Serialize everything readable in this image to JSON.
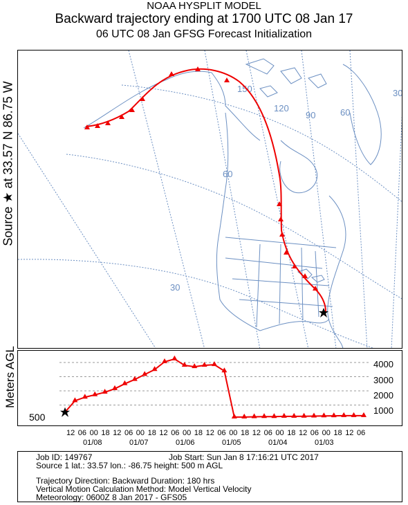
{
  "header": {
    "line1": "NOAA HYSPLIT MODEL",
    "line2": "Backward trajectory ending at 1700 UTC 08 Jan 17",
    "line3": "06 UTC 08 Jan    GFSG  Forecast Initialization"
  },
  "side_label": "Source ★ at   33.57 N   86.75 W",
  "map": {
    "grid_labels": [
      "150",
      "120",
      "90",
      "60",
      "60",
      "30",
      "30"
    ],
    "colors": {
      "coast": "#6b8fc2",
      "grid": "#6b8fc2",
      "trajectory": "#ee0000",
      "marker": "#000000"
    },
    "source_marker": "star-icon"
  },
  "profile": {
    "ylabel": "Meters AGL",
    "height_labels": [
      "4000",
      "3000",
      "2000",
      "1000"
    ],
    "start_label": "500",
    "hour_ticks": [
      "12",
      "06",
      "00",
      "18",
      "12",
      "06",
      "00",
      "18",
      "12",
      "06",
      "00",
      "18",
      "12",
      "06",
      "00",
      "18",
      "12",
      "06",
      "00",
      "18",
      "12",
      "06",
      "00",
      "18",
      "12",
      "06"
    ],
    "dates": [
      "01/08",
      "01/07",
      "01/06",
      "01/05",
      "01/04",
      "01/03"
    ]
  },
  "chart_data": {
    "type": "line",
    "title": "",
    "xlabel": "",
    "ylabel": "Meters AGL",
    "x_unit": "hours before 1700 UTC 08 Jan 2017",
    "ylim": [
      0,
      4000
    ],
    "series": [
      {
        "x": [
          0,
          6,
          12,
          18,
          24,
          30,
          36,
          42,
          48,
          54,
          60,
          66,
          72,
          78,
          84,
          90,
          96,
          102,
          108,
          114,
          120,
          126,
          132,
          138,
          144,
          150,
          156,
          162,
          168,
          174,
          180
        ],
        "values": [
          500,
          1300,
          1550,
          1720,
          1900,
          2150,
          2500,
          2800,
          3150,
          3500,
          4050,
          4250,
          3800,
          3700,
          3800,
          3850,
          3400,
          150,
          150,
          170,
          180,
          180,
          200,
          200,
          210,
          220,
          230,
          240,
          250,
          250,
          250
        ]
      }
    ]
  },
  "footer": {
    "job_id": "Job ID: 149767",
    "job_start": "Job Start: Sun Jan  8 17:16:21 UTC 2017",
    "source": "Source 1      lat.: 33.57   lon.: -86.75     height: 500 m AGL",
    "direction": "Trajectory Direction: Backward       Duration: 180 hrs",
    "vertical": "Vertical Motion Calculation Method:         Model Vertical Velocity",
    "meteorology": "Meteorology: 0600Z  8 Jan 2017 - GFS05"
  }
}
